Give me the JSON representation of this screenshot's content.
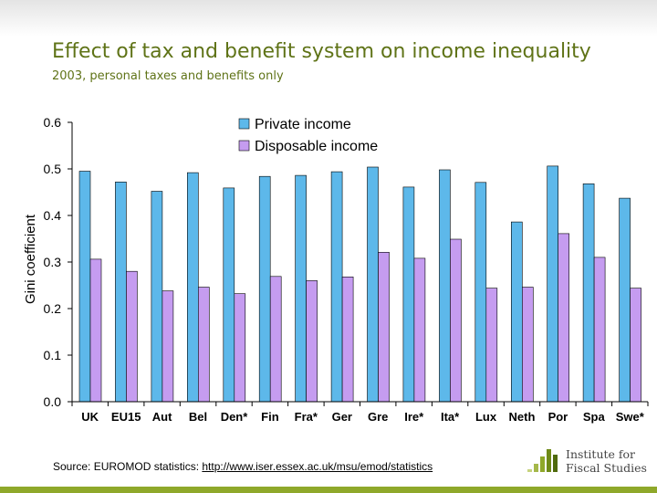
{
  "slide": {
    "title": "Effect of tax and benefit system on income inequality",
    "subtitle": "2003, personal taxes and benefits only",
    "source_prefix": "Source: EUROMOD statistics: ",
    "source_link": "http://www.iser.essex.ac.uk/msu/emod/statistics",
    "logo_line1": "Institute for",
    "logo_line2": "Fiscal Studies",
    "accent_color": "#5f7317",
    "band_color": "#8fa82a"
  },
  "chart_data": {
    "type": "bar",
    "title": "",
    "xlabel": "",
    "ylabel": "Gini coefficient",
    "ylim": [
      0,
      0.6
    ],
    "yticks": [
      "0.0",
      "0.1",
      "0.2",
      "0.3",
      "0.4",
      "0.5",
      "0.6"
    ],
    "grid": false,
    "legend_position": "top",
    "categories": [
      "UK",
      "EU15",
      "Aut",
      "Bel",
      "Den*",
      "Fin",
      "Fra*",
      "Ger",
      "Gre",
      "Ire*",
      "Ita*",
      "Lux",
      "Neth",
      "Por",
      "Spa",
      "Swe*"
    ],
    "series": [
      {
        "name": "Private income",
        "color": "#5db8ea",
        "values": [
          0.495,
          0.472,
          0.452,
          0.492,
          0.459,
          0.484,
          0.486,
          0.494,
          0.504,
          0.461,
          0.498,
          0.471,
          0.386,
          0.506,
          0.468,
          0.437
        ]
      },
      {
        "name": "Disposable income",
        "color": "#c59cf0",
        "values": [
          0.306,
          0.28,
          0.238,
          0.246,
          0.232,
          0.269,
          0.26,
          0.268,
          0.321,
          0.308,
          0.349,
          0.244,
          0.246,
          0.361,
          0.31,
          0.244
        ]
      }
    ]
  }
}
